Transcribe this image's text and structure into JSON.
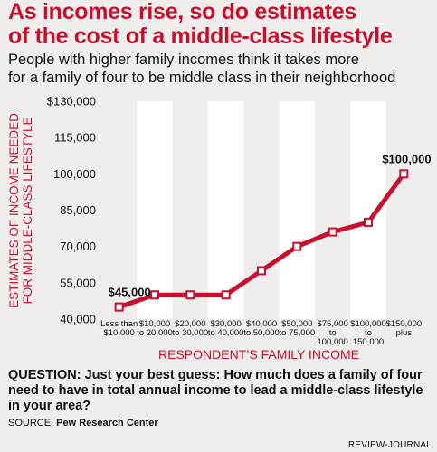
{
  "header": {
    "headline_line1": "As incomes rise, so do estimates",
    "headline_line2": "of the cost of a middle-class lifestyle",
    "subhead_line1": "People with higher family incomes think it takes more",
    "subhead_line2": "for a family of four to be middle class in their neighborhood"
  },
  "chart_data": {
    "type": "line",
    "categories": [
      [
        "Less than",
        "$10,000"
      ],
      [
        "$10,000",
        "to 20,000"
      ],
      [
        "$20,000",
        "to 30,000"
      ],
      [
        "$30,000",
        "to 40,000"
      ],
      [
        "$40,000",
        "to 50,000"
      ],
      [
        "$50,000",
        "to 75,000"
      ],
      [
        "$75,000",
        "to",
        "100,000"
      ],
      [
        "$100,000",
        "to",
        "150,000"
      ],
      [
        "$150,000",
        "plus"
      ]
    ],
    "values": [
      45000,
      50000,
      50000,
      50000,
      60000,
      70000,
      76000,
      80000,
      100000
    ],
    "data_labels": [
      {
        "index": 0,
        "text": "$45,000"
      },
      {
        "index": 8,
        "text": "$100,000"
      }
    ],
    "yticks": [
      {
        "value": 130000,
        "label": "$130,000"
      },
      {
        "value": 115000,
        "label": "115,000"
      },
      {
        "value": 100000,
        "label": "100,000"
      },
      {
        "value": 85000,
        "label": "85,000"
      },
      {
        "value": 70000,
        "label": "70,000"
      },
      {
        "value": 55000,
        "label": "55,000"
      },
      {
        "value": 40000,
        "label": "40,000"
      }
    ],
    "ylim": [
      40000,
      130000
    ],
    "ylabel_line1": "ESTIMATES OF INCOME NEEDED",
    "ylabel_line2": "FOR MIDDLE-CLASS LIFESTYLE",
    "xlabel": "RESPONDENT’S FAMILY INCOME",
    "grid": "alternating vertical bands",
    "colors": {
      "line": "#c8102e",
      "marker_fill": "#ffffff",
      "band": "#ffffff",
      "label": "#c8102e"
    }
  },
  "footer": {
    "question_label": "QUESTION:",
    "question_text": " Just your best guess: How much does a family of four need to have in total annual income to lead a middle-class lifestyle in your area?",
    "source_label": "SOURCE:",
    "source_text": " Pew Research Center",
    "credit": "REVIEW-JOURNAL"
  }
}
